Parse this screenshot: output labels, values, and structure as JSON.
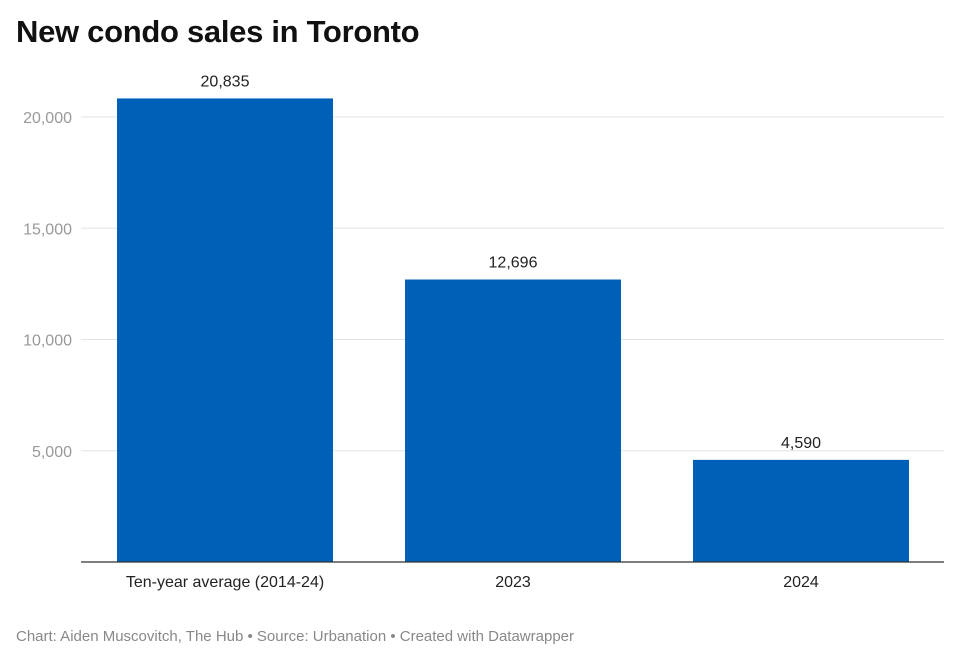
{
  "chart_data": {
    "type": "bar",
    "title": "New condo sales in Toronto",
    "categories": [
      "Ten-year average (2014-24)",
      "2023",
      "2024"
    ],
    "values": [
      20835,
      12696,
      4590
    ],
    "data_labels": [
      "20,835",
      "12,696",
      "4,590"
    ],
    "xlabel": "",
    "ylabel": "",
    "ylim": [
      0,
      20000
    ],
    "yticks": [
      5000,
      10000,
      15000,
      20000
    ],
    "ytick_labels": [
      "5,000",
      "10,000",
      "15,000",
      "20,000"
    ],
    "grid": true,
    "bar_color": "#0060b8",
    "footer": "Chart: Aiden Muscovitch, The Hub • Source: Urbanation • Created with Datawrapper"
  }
}
